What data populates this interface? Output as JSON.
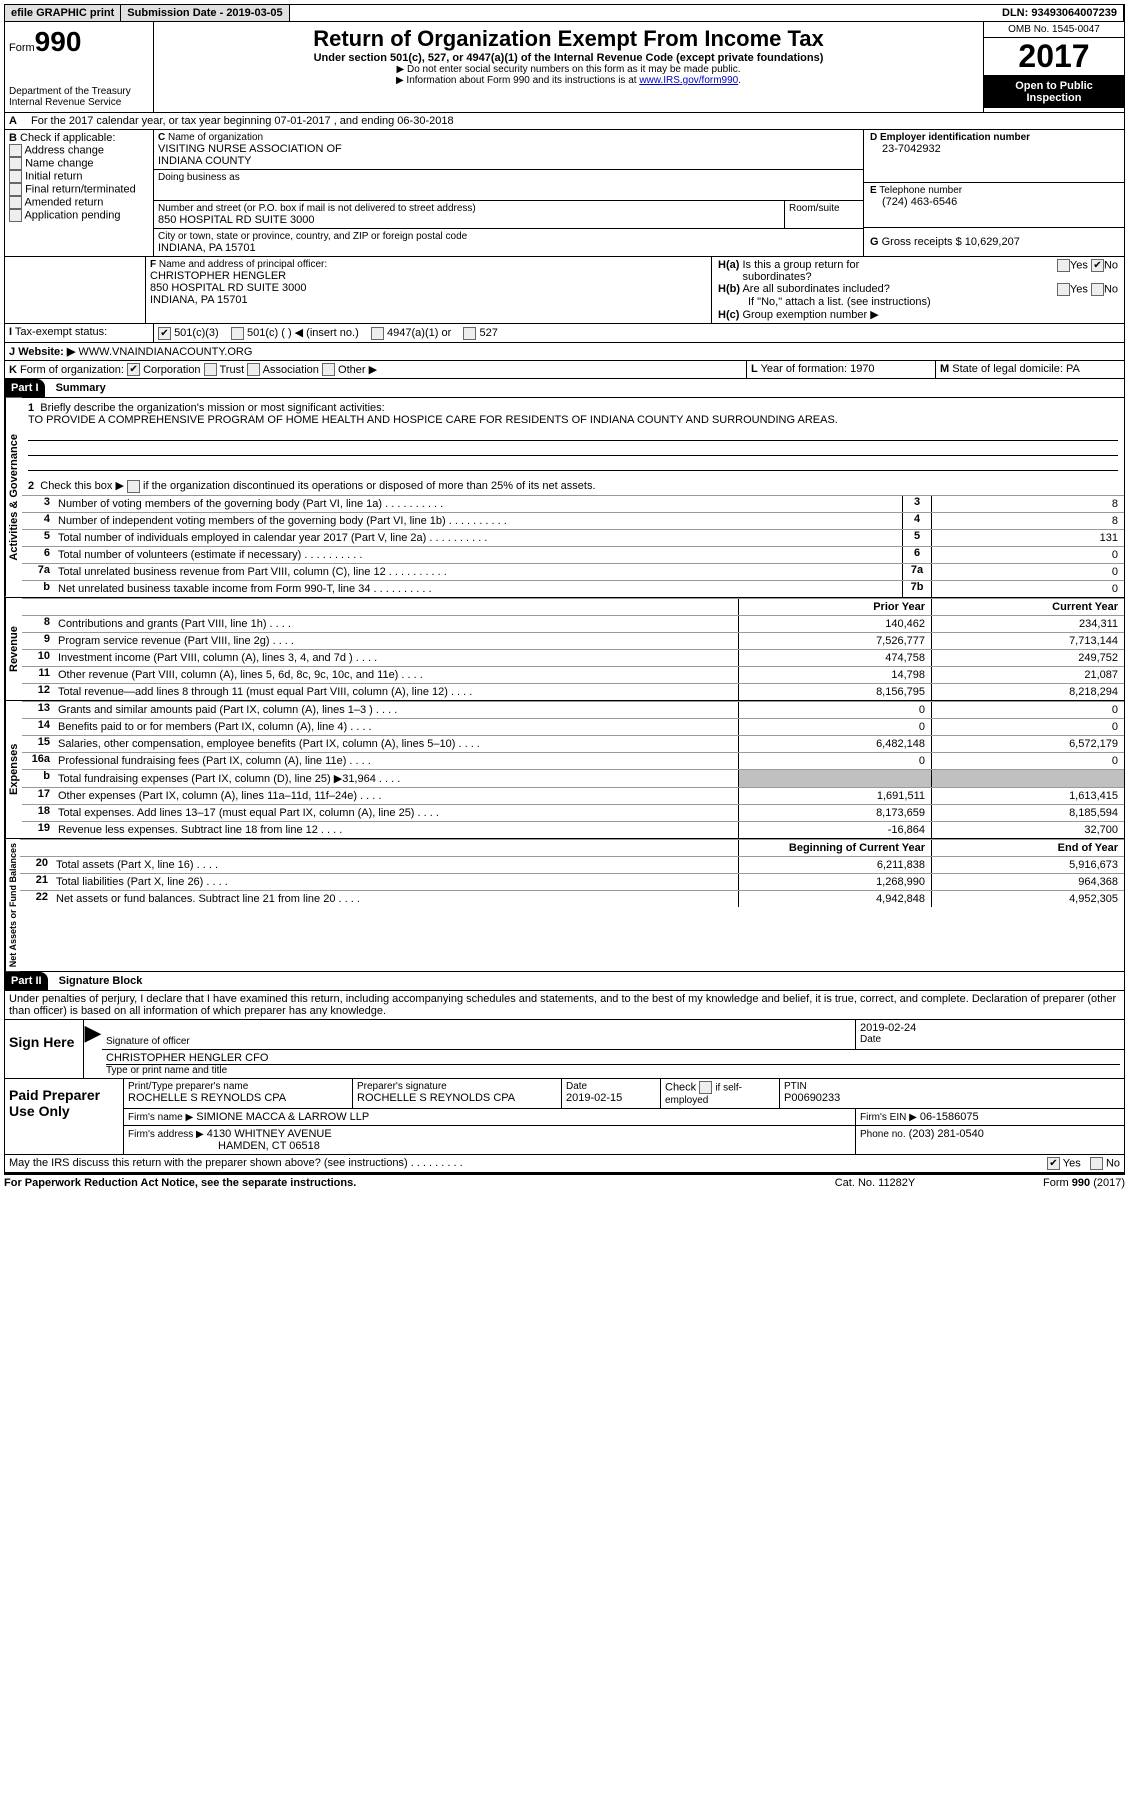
{
  "topbar": {
    "efile": "efile GRAPHIC print",
    "submission_label": "Submission Date - 2019-03-05",
    "dln_label": "DLN: 93493064007239"
  },
  "header": {
    "form_prefix": "Form",
    "form_number": "990",
    "dept1": "Department of the Treasury",
    "dept2": "Internal Revenue Service",
    "title": "Return of Organization Exempt From Income Tax",
    "subtitle": "Under section 501(c), 527, or 4947(a)(1) of the Internal Revenue Code (except private foundations)",
    "note1": "Do not enter social security numbers on this form as it may be made public.",
    "note2": "Information about Form 990 and its instructions is at ",
    "note2_link": "www.IRS.gov/form990",
    "omb": "OMB No. 1545-0047",
    "year": "2017",
    "inspect1": "Open to Public",
    "inspect2": "Inspection"
  },
  "sectionA": {
    "line": "For the 2017 calendar year, or tax year beginning 07-01-2017   , and ending 06-30-2018"
  },
  "sectionB": {
    "label": "Check if applicable:",
    "items": [
      "Address change",
      "Name change",
      "Initial return",
      "Final return/terminated",
      "Amended return",
      "Application pending"
    ]
  },
  "sectionC": {
    "name_label": "Name of organization",
    "name1": "VISITING NURSE ASSOCIATION OF",
    "name2": "INDIANA COUNTY",
    "dba_label": "Doing business as",
    "addr_label": "Number and street (or P.O. box if mail is not delivered to street address)",
    "room_label": "Room/suite",
    "addr": "850 HOSPITAL RD SUITE 3000",
    "city_label": "City or town, state or province, country, and ZIP or foreign postal code",
    "city": "INDIANA, PA  15701"
  },
  "sectionD": {
    "label": "Employer identification number",
    "value": "23-7042932"
  },
  "sectionE": {
    "label": "Telephone number",
    "value": "(724) 463-6546"
  },
  "sectionG": {
    "label": "Gross receipts $",
    "value": "10,629,207"
  },
  "sectionF": {
    "label": "Name and address of principal officer:",
    "name": "CHRISTOPHER HENGLER",
    "addr1": "850 HOSPITAL RD SUITE 3000",
    "addr2": "INDIANA, PA  15701"
  },
  "sectionH": {
    "ha_label": "Is this a group return for",
    "ha_label2": "subordinates?",
    "hb_label": "Are all subordinates included?",
    "hb_note": "If \"No,\" attach a list. (see instructions)",
    "hc_label": "Group exemption number ▶",
    "yes": "Yes",
    "no": "No"
  },
  "sectionI": {
    "label": "Tax-exempt status:",
    "opts": [
      "501(c)(3)",
      "501(c) (   ) ◀ (insert no.)",
      "4947(a)(1) or",
      "527"
    ]
  },
  "sectionJ": {
    "label": "Website: ▶",
    "value": "WWW.VNAINDIANACOUNTY.ORG"
  },
  "sectionK": {
    "label": "Form of organization:",
    "opts": [
      "Corporation",
      "Trust",
      "Association",
      "Other ▶"
    ]
  },
  "sectionL": {
    "label": "Year of formation:",
    "value": "1970"
  },
  "sectionM": {
    "label": "State of legal domicile:",
    "value": "PA"
  },
  "part1": {
    "title": "Part I",
    "subtitle": "Summary",
    "line1_label": "Briefly describe the organization's mission or most significant activities:",
    "line1_text": "TO PROVIDE A COMPREHENSIVE PROGRAM OF HOME HEALTH AND HOSPICE CARE FOR RESIDENTS OF INDIANA COUNTY AND SURROUNDING AREAS.",
    "line2_label": "Check this box ▶",
    "line2_text": " if the organization discontinued its operations or disposed of more than 25% of its net assets.",
    "gov_label": "Activities & Governance",
    "rev_label": "Revenue",
    "exp_label": "Expenses",
    "net_label": "Net Assets or Fund Balances",
    "prior_hdr": "Prior Year",
    "curr_hdr": "Current Year",
    "begin_hdr": "Beginning of Current Year",
    "end_hdr": "End of Year",
    "gov_rows": [
      {
        "n": "3",
        "desc": "Number of voting members of the governing body (Part VI, line 1a)",
        "box": "3",
        "val": "8"
      },
      {
        "n": "4",
        "desc": "Number of independent voting members of the governing body (Part VI, line 1b)",
        "box": "4",
        "val": "8"
      },
      {
        "n": "5",
        "desc": "Total number of individuals employed in calendar year 2017 (Part V, line 2a)",
        "box": "5",
        "val": "131"
      },
      {
        "n": "6",
        "desc": "Total number of volunteers (estimate if necessary)",
        "box": "6",
        "val": "0"
      },
      {
        "n": "7a",
        "desc": "Total unrelated business revenue from Part VIII, column (C), line 12",
        "box": "7a",
        "val": "0"
      },
      {
        "n": "b",
        "desc": "Net unrelated business taxable income from Form 990-T, line 34",
        "box": "7b",
        "val": "0"
      }
    ],
    "rev_rows": [
      {
        "n": "8",
        "desc": "Contributions and grants (Part VIII, line 1h)",
        "prior": "140,462",
        "curr": "234,311"
      },
      {
        "n": "9",
        "desc": "Program service revenue (Part VIII, line 2g)",
        "prior": "7,526,777",
        "curr": "7,713,144"
      },
      {
        "n": "10",
        "desc": "Investment income (Part VIII, column (A), lines 3, 4, and 7d )",
        "prior": "474,758",
        "curr": "249,752"
      },
      {
        "n": "11",
        "desc": "Other revenue (Part VIII, column (A), lines 5, 6d, 8c, 9c, 10c, and 11e)",
        "prior": "14,798",
        "curr": "21,087"
      },
      {
        "n": "12",
        "desc": "Total revenue—add lines 8 through 11 (must equal Part VIII, column (A), line 12)",
        "prior": "8,156,795",
        "curr": "8,218,294"
      }
    ],
    "exp_rows": [
      {
        "n": "13",
        "desc": "Grants and similar amounts paid (Part IX, column (A), lines 1–3 )",
        "prior": "0",
        "curr": "0"
      },
      {
        "n": "14",
        "desc": "Benefits paid to or for members (Part IX, column (A), line 4)",
        "prior": "0",
        "curr": "0"
      },
      {
        "n": "15",
        "desc": "Salaries, other compensation, employee benefits (Part IX, column (A), lines 5–10)",
        "prior": "6,482,148",
        "curr": "6,572,179"
      },
      {
        "n": "16a",
        "desc": "Professional fundraising fees (Part IX, column (A), line 11e)",
        "prior": "0",
        "curr": "0"
      },
      {
        "n": "b",
        "desc": "Total fundraising expenses (Part IX, column (D), line 25) ▶31,964",
        "prior": "",
        "curr": "",
        "shade": true
      },
      {
        "n": "17",
        "desc": "Other expenses (Part IX, column (A), lines 11a–11d, 11f–24e)",
        "prior": "1,691,511",
        "curr": "1,613,415"
      },
      {
        "n": "18",
        "desc": "Total expenses. Add lines 13–17 (must equal Part IX, column (A), line 25)",
        "prior": "8,173,659",
        "curr": "8,185,594"
      },
      {
        "n": "19",
        "desc": "Revenue less expenses. Subtract line 18 from line 12",
        "prior": "-16,864",
        "curr": "32,700"
      }
    ],
    "net_rows": [
      {
        "n": "20",
        "desc": "Total assets (Part X, line 16)",
        "prior": "6,211,838",
        "curr": "5,916,673"
      },
      {
        "n": "21",
        "desc": "Total liabilities (Part X, line 26)",
        "prior": "1,268,990",
        "curr": "964,368"
      },
      {
        "n": "22",
        "desc": "Net assets or fund balances. Subtract line 21 from line 20",
        "prior": "4,942,848",
        "curr": "4,952,305"
      }
    ]
  },
  "part2": {
    "title": "Part II",
    "subtitle": "Signature Block",
    "declaration": "Under penalties of perjury, I declare that I have examined this return, including accompanying schedules and statements, and to the best of my knowledge and belief, it is true, correct, and complete. Declaration of preparer (other than officer) is based on all information of which preparer has any knowledge.",
    "sign_here": "Sign Here",
    "sig_officer_label": "Signature of officer",
    "sig_date": "2019-02-24",
    "date_label": "Date",
    "officer_name": "CHRISTOPHER HENGLER CFO",
    "officer_name_label": "Type or print name and title",
    "paid": "Paid Preparer Use Only",
    "prep_name_label": "Print/Type preparer's name",
    "prep_name": "ROCHELLE S REYNOLDS CPA",
    "prep_sig_label": "Preparer's signature",
    "prep_sig": "ROCHELLE S REYNOLDS CPA",
    "prep_date_label": "Date",
    "prep_date": "2019-02-15",
    "check_if": "Check",
    "self_emp": "if self-employed",
    "ptin_label": "PTIN",
    "ptin": "P00690233",
    "firm_name_label": "Firm's name    ▶",
    "firm_name": "SIMIONE MACCA & LARROW LLP",
    "firm_ein_label": "Firm's EIN ▶",
    "firm_ein": "06-1586075",
    "firm_addr_label": "Firm's address ▶",
    "firm_addr1": "4130 WHITNEY AVENUE",
    "firm_addr2": "HAMDEN, CT  06518",
    "phone_label": "Phone no.",
    "phone": "(203) 281-0540",
    "discuss": "May the IRS discuss this return with the preparer shown above? (see instructions)",
    "yes": "Yes",
    "no": "No"
  },
  "footer": {
    "paperwork": "For Paperwork Reduction Act Notice, see the separate instructions.",
    "cat": "Cat. No. 11282Y",
    "form": "Form 990 (2017)"
  }
}
